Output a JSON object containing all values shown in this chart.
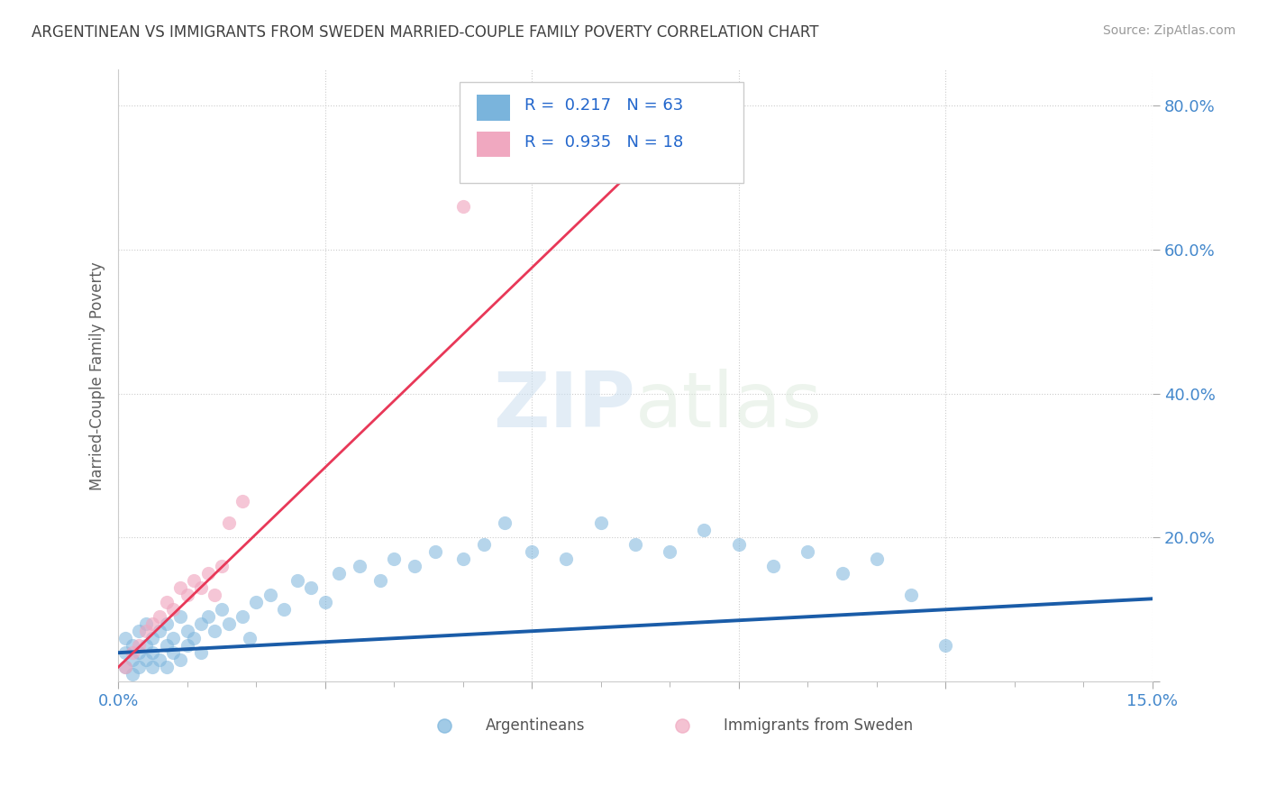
{
  "title": "ARGENTINEAN VS IMMIGRANTS FROM SWEDEN MARRIED-COUPLE FAMILY POVERTY CORRELATION CHART",
  "source": "Source: ZipAtlas.com",
  "ylabel": "Married-Couple Family Poverty",
  "xlim": [
    0.0,
    0.15
  ],
  "ylim": [
    0.0,
    0.85
  ],
  "argentinean_color": "#7ab4dc",
  "sweden_color": "#f0a8c0",
  "trend_blue_color": "#1a5ca8",
  "trend_pink_color": "#e83858",
  "watermark": "ZIPatlas",
  "legend_label_argentinean": "Argentineans",
  "legend_label_sweden": "Immigrants from Sweden",
  "grid_color": "#cccccc",
  "background_color": "#ffffff",
  "title_color": "#404040",
  "tick_label_color": "#4488cc",
  "r_label_color": "#2266cc",
  "argentinean_x": [
    0.001,
    0.001,
    0.001,
    0.002,
    0.002,
    0.002,
    0.003,
    0.003,
    0.003,
    0.004,
    0.004,
    0.004,
    0.005,
    0.005,
    0.005,
    0.006,
    0.006,
    0.007,
    0.007,
    0.007,
    0.008,
    0.008,
    0.009,
    0.009,
    0.01,
    0.01,
    0.011,
    0.012,
    0.012,
    0.013,
    0.014,
    0.015,
    0.016,
    0.018,
    0.019,
    0.02,
    0.022,
    0.024,
    0.026,
    0.028,
    0.03,
    0.032,
    0.035,
    0.038,
    0.04,
    0.043,
    0.046,
    0.05,
    0.053,
    0.056,
    0.06,
    0.065,
    0.07,
    0.075,
    0.08,
    0.085,
    0.09,
    0.095,
    0.1,
    0.105,
    0.11,
    0.115,
    0.12
  ],
  "argentinean_y": [
    0.04,
    0.02,
    0.06,
    0.03,
    0.05,
    0.01,
    0.04,
    0.07,
    0.02,
    0.05,
    0.03,
    0.08,
    0.06,
    0.02,
    0.04,
    0.07,
    0.03,
    0.05,
    0.08,
    0.02,
    0.06,
    0.04,
    0.09,
    0.03,
    0.07,
    0.05,
    0.06,
    0.08,
    0.04,
    0.09,
    0.07,
    0.1,
    0.08,
    0.09,
    0.06,
    0.11,
    0.12,
    0.1,
    0.14,
    0.13,
    0.11,
    0.15,
    0.16,
    0.14,
    0.17,
    0.16,
    0.18,
    0.17,
    0.19,
    0.22,
    0.18,
    0.17,
    0.22,
    0.19,
    0.18,
    0.21,
    0.19,
    0.16,
    0.18,
    0.15,
    0.17,
    0.12,
    0.05
  ],
  "sweden_x": [
    0.001,
    0.002,
    0.003,
    0.004,
    0.005,
    0.006,
    0.007,
    0.008,
    0.009,
    0.01,
    0.011,
    0.012,
    0.013,
    0.014,
    0.015,
    0.016,
    0.018,
    0.05
  ],
  "sweden_y": [
    0.02,
    0.04,
    0.05,
    0.07,
    0.08,
    0.09,
    0.11,
    0.1,
    0.13,
    0.12,
    0.14,
    0.13,
    0.15,
    0.12,
    0.16,
    0.22,
    0.25,
    0.66
  ]
}
